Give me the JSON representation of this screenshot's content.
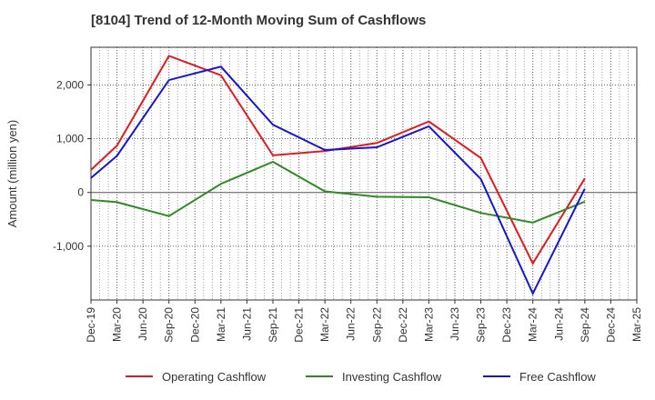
{
  "chart_data": {
    "type": "line",
    "title": "[8104]  Trend of 12-Month Moving Sum of Cashflows",
    "xlabel": "",
    "ylabel": "Amount (million yen)",
    "categories": [
      "Dec-19",
      "Mar-20",
      "Jun-20",
      "Sep-20",
      "Dec-20",
      "Mar-21",
      "Jun-21",
      "Sep-21",
      "Dec-21",
      "Mar-22",
      "Jun-22",
      "Sep-22",
      "Dec-22",
      "Mar-23",
      "Jun-23",
      "Sep-23",
      "Dec-23",
      "Mar-24",
      "Jun-24",
      "Sep-24",
      "Dec-24",
      "Mar-25"
    ],
    "ylim": [
      -2000,
      2700
    ],
    "yticks": [
      -1000,
      0,
      1000,
      2000
    ],
    "ytick_labels": [
      "-1,000",
      "0",
      "1,000",
      "2,000"
    ],
    "grid": true,
    "legend_position": "bottom",
    "series": [
      {
        "name": "Operating Cashflow",
        "color": "#e31a1c",
        "points": [
          [
            "Dec-19",
            420
          ],
          [
            "Mar-20",
            870
          ],
          [
            "Sep-20",
            2540
          ],
          [
            "Mar-21",
            2180
          ],
          [
            "Sep-21",
            690
          ],
          [
            "Mar-22",
            770
          ],
          [
            "Sep-22",
            920
          ],
          [
            "Mar-23",
            1320
          ],
          [
            "Sep-23",
            640
          ],
          [
            "Mar-24",
            -1320
          ],
          [
            "Sep-24",
            260
          ]
        ]
      },
      {
        "name": "Investing Cashflow",
        "color": "#2e8b22",
        "points": [
          [
            "Dec-19",
            -140
          ],
          [
            "Mar-20",
            -180
          ],
          [
            "Sep-20",
            -440
          ],
          [
            "Mar-21",
            160
          ],
          [
            "Sep-21",
            570
          ],
          [
            "Mar-22",
            20
          ],
          [
            "Sep-22",
            -80
          ],
          [
            "Mar-23",
            -90
          ],
          [
            "Sep-23",
            -380
          ],
          [
            "Mar-24",
            -560
          ],
          [
            "Sep-24",
            -170
          ]
        ]
      },
      {
        "name": "Free Cashflow",
        "color": "#1515d6",
        "points": [
          [
            "Dec-19",
            270
          ],
          [
            "Mar-20",
            680
          ],
          [
            "Sep-20",
            2090
          ],
          [
            "Mar-21",
            2340
          ],
          [
            "Sep-21",
            1260
          ],
          [
            "Mar-22",
            790
          ],
          [
            "Sep-22",
            840
          ],
          [
            "Mar-23",
            1230
          ],
          [
            "Sep-23",
            250
          ],
          [
            "Mar-24",
            -1880
          ],
          [
            "Sep-24",
            70
          ]
        ]
      }
    ]
  }
}
